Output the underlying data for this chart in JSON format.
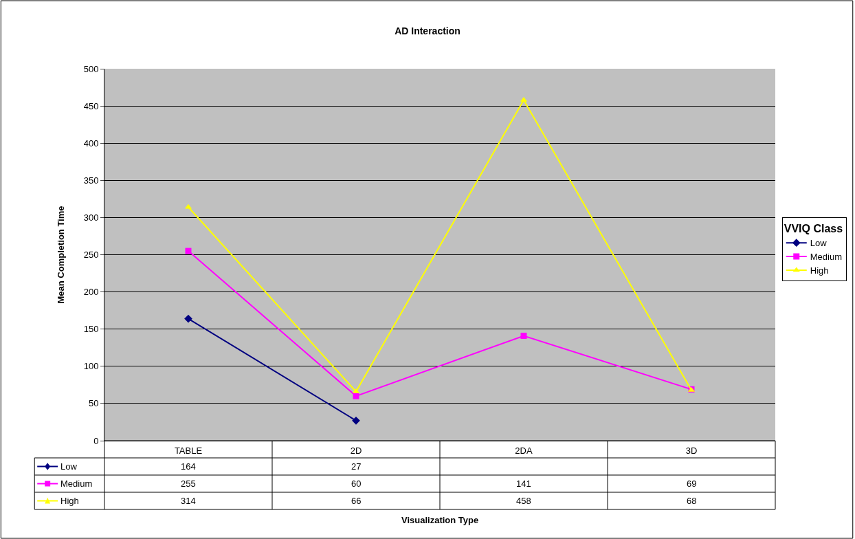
{
  "chart_data": {
    "type": "line",
    "title": "AD Interaction",
    "annotations": [
      "Visualization Type"
    ],
    "ylabel": "Mean Completion Time",
    "legend_title": "VVIQ Class",
    "categories": [
      "TABLE",
      "2D",
      "2DA",
      "3D"
    ],
    "series": [
      {
        "name": "Low",
        "color": "#000080",
        "marker": "diamond",
        "values": [
          164,
          27,
          null,
          null
        ]
      },
      {
        "name": "Medium",
        "color": "#ff00ff",
        "marker": "square",
        "values": [
          255,
          60,
          141,
          69
        ]
      },
      {
        "name": "High",
        "color": "#ffff00",
        "marker": "triangle",
        "values": [
          314,
          66,
          458,
          68
        ]
      }
    ],
    "ylim": [
      0,
      500
    ],
    "yticks": [
      0,
      50,
      100,
      150,
      200,
      250,
      300,
      350,
      400,
      450,
      500
    ],
    "grid": "y",
    "legend": "right",
    "data_labels": true
  }
}
